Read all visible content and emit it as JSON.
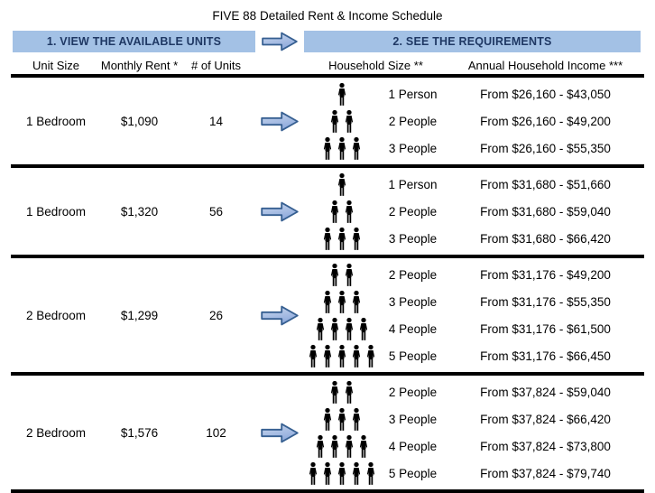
{
  "title": "FIVE 88 Detailed Rent & Income Schedule",
  "steps": {
    "step1_label": "1.  VIEW THE AVAILABLE UNITS",
    "step2_label": "2.  SEE THE REQUIREMENTS"
  },
  "columns": {
    "unit_size": "Unit Size",
    "monthly_rent": "Monthly Rent *",
    "num_units": "# of Units",
    "household_size": "Household Size **",
    "annual_income": "Annual Household Income ***"
  },
  "colors": {
    "step_bar_bg": "#A3C1E5",
    "step_bar_text": "#1F3864",
    "arrow_fill_light": "#CBD9EE",
    "arrow_fill_dark": "#8FAADC",
    "arrow_stroke": "#365F91",
    "separator": "#000000",
    "person_icon": "#000000"
  },
  "icons": {
    "step_arrow": "right-block-arrow",
    "row_arrow": "right-block-arrow",
    "person": "person-pictogram"
  },
  "rows": [
    {
      "unit_size": "1 Bedroom",
      "monthly_rent": "$1,090",
      "num_units": "14",
      "households": [
        {
          "count": 1,
          "label": "1 Person",
          "income": "From $26,160 - $43,050"
        },
        {
          "count": 2,
          "label": "2 People",
          "income": "From $26,160 - $49,200"
        },
        {
          "count": 3,
          "label": "3 People",
          "income": "From $26,160 - $55,350"
        }
      ]
    },
    {
      "unit_size": "1 Bedroom",
      "monthly_rent": "$1,320",
      "num_units": "56",
      "households": [
        {
          "count": 1,
          "label": "1 Person",
          "income": "From $31,680 - $51,660"
        },
        {
          "count": 2,
          "label": "2 People",
          "income": "From $31,680 - $59,040"
        },
        {
          "count": 3,
          "label": "3 People",
          "income": "From $31,680 - $66,420"
        }
      ]
    },
    {
      "unit_size": "2 Bedroom",
      "monthly_rent": "$1,299",
      "num_units": "26",
      "households": [
        {
          "count": 2,
          "label": "2 People",
          "income": "From $31,176 - $49,200"
        },
        {
          "count": 3,
          "label": "3 People",
          "income": "From $31,176 - $55,350"
        },
        {
          "count": 4,
          "label": "4 People",
          "income": "From $31,176 - $61,500"
        },
        {
          "count": 5,
          "label": "5 People",
          "income": "From $31,176 - $66,450"
        }
      ]
    },
    {
      "unit_size": "2 Bedroom",
      "monthly_rent": "$1,576",
      "num_units": "102",
      "households": [
        {
          "count": 2,
          "label": "2 People",
          "income": "From $37,824 - $59,040"
        },
        {
          "count": 3,
          "label": "3 People",
          "income": "From $37,824 - $66,420"
        },
        {
          "count": 4,
          "label": "4 People",
          "income": "From $37,824 - $73,800"
        },
        {
          "count": 5,
          "label": "5 People",
          "income": "From $37,824 - $79,740"
        }
      ]
    }
  ]
}
